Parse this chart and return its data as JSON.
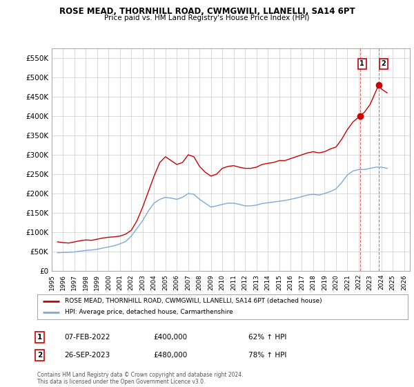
{
  "title": "ROSE MEAD, THORNHILL ROAD, CWMGWILI, LLANELLI, SA14 6PT",
  "subtitle": "Price paid vs. HM Land Registry's House Price Index (HPI)",
  "ylabel_ticks": [
    "£0",
    "£50K",
    "£100K",
    "£150K",
    "£200K",
    "£250K",
    "£300K",
    "£350K",
    "£400K",
    "£450K",
    "£500K",
    "£550K"
  ],
  "ytick_values": [
    0,
    50000,
    100000,
    150000,
    200000,
    250000,
    300000,
    350000,
    400000,
    450000,
    500000,
    550000
  ],
  "ylim": [
    0,
    575000
  ],
  "xlim_start": 1995.0,
  "xlim_end": 2026.5,
  "red_line_color": "#cc0000",
  "blue_line_color": "#7aaadd",
  "grid_color": "#cccccc",
  "background_color": "#ffffff",
  "legend_entry1": "ROSE MEAD, THORNHILL ROAD, CWMGWILI, LLANELLI, SA14 6PT (detached house)",
  "legend_entry2": "HPI: Average price, detached house, Carmarthenshire",
  "sale1_label": "1",
  "sale1_date": "07-FEB-2022",
  "sale1_price": "£400,000",
  "sale1_hpi": "62% ↑ HPI",
  "sale1_x": 2022.1,
  "sale1_y": 400000,
  "sale2_label": "2",
  "sale2_date": "26-SEP-2023",
  "sale2_price": "£480,000",
  "sale2_hpi": "78% ↑ HPI",
  "sale2_x": 2023.75,
  "sale2_y": 480000,
  "footer": "Contains HM Land Registry data © Crown copyright and database right 2024.\nThis data is licensed under the Open Government Licence v3.0.",
  "red_data": {
    "years": [
      1995.5,
      1996.0,
      1996.5,
      1997.0,
      1997.5,
      1998.0,
      1998.5,
      1999.0,
      1999.5,
      2000.0,
      2000.5,
      2001.0,
      2001.5,
      2002.0,
      2002.5,
      2003.0,
      2003.5,
      2004.0,
      2004.5,
      2005.0,
      2005.5,
      2006.0,
      2006.5,
      2007.0,
      2007.5,
      2008.0,
      2008.5,
      2009.0,
      2009.5,
      2010.0,
      2010.5,
      2011.0,
      2011.5,
      2012.0,
      2012.5,
      2013.0,
      2013.5,
      2014.0,
      2014.5,
      2015.0,
      2015.5,
      2016.0,
      2016.5,
      2017.0,
      2017.5,
      2018.0,
      2018.5,
      2019.0,
      2019.5,
      2020.0,
      2020.5,
      2021.0,
      2021.5,
      2022.1,
      2022.5,
      2023.0,
      2023.75,
      2024.0,
      2024.5
    ],
    "values": [
      75000,
      73000,
      72000,
      75000,
      78000,
      80000,
      79000,
      82000,
      85000,
      87000,
      88000,
      90000,
      95000,
      105000,
      130000,
      165000,
      205000,
      245000,
      280000,
      295000,
      285000,
      275000,
      280000,
      300000,
      295000,
      270000,
      255000,
      245000,
      250000,
      265000,
      270000,
      272000,
      268000,
      265000,
      265000,
      268000,
      275000,
      278000,
      280000,
      285000,
      285000,
      290000,
      295000,
      300000,
      305000,
      308000,
      305000,
      308000,
      315000,
      320000,
      340000,
      365000,
      385000,
      400000,
      410000,
      430000,
      480000,
      470000,
      460000
    ]
  },
  "blue_data": {
    "years": [
      1995.5,
      1996.0,
      1996.5,
      1997.0,
      1997.5,
      1998.0,
      1998.5,
      1999.0,
      1999.5,
      2000.0,
      2000.5,
      2001.0,
      2001.5,
      2002.0,
      2002.5,
      2003.0,
      2003.5,
      2004.0,
      2004.5,
      2005.0,
      2005.5,
      2006.0,
      2006.5,
      2007.0,
      2007.5,
      2008.0,
      2008.5,
      2009.0,
      2009.5,
      2010.0,
      2010.5,
      2011.0,
      2011.5,
      2012.0,
      2012.5,
      2013.0,
      2013.5,
      2014.0,
      2014.5,
      2015.0,
      2015.5,
      2016.0,
      2016.5,
      2017.0,
      2017.5,
      2018.0,
      2018.5,
      2019.0,
      2019.5,
      2020.0,
      2020.5,
      2021.0,
      2021.5,
      2022.0,
      2022.5,
      2023.0,
      2023.5,
      2024.0,
      2024.5
    ],
    "values": [
      47000,
      47500,
      48000,
      49000,
      51000,
      53000,
      54000,
      56000,
      59000,
      62000,
      65000,
      70000,
      76000,
      90000,
      110000,
      130000,
      155000,
      175000,
      185000,
      190000,
      188000,
      185000,
      190000,
      200000,
      198000,
      185000,
      175000,
      165000,
      168000,
      172000,
      175000,
      175000,
      172000,
      168000,
      168000,
      170000,
      174000,
      176000,
      178000,
      180000,
      182000,
      185000,
      188000,
      192000,
      196000,
      198000,
      196000,
      200000,
      205000,
      212000,
      228000,
      248000,
      258000,
      262000,
      262000,
      265000,
      268000,
      268000,
      265000
    ]
  }
}
